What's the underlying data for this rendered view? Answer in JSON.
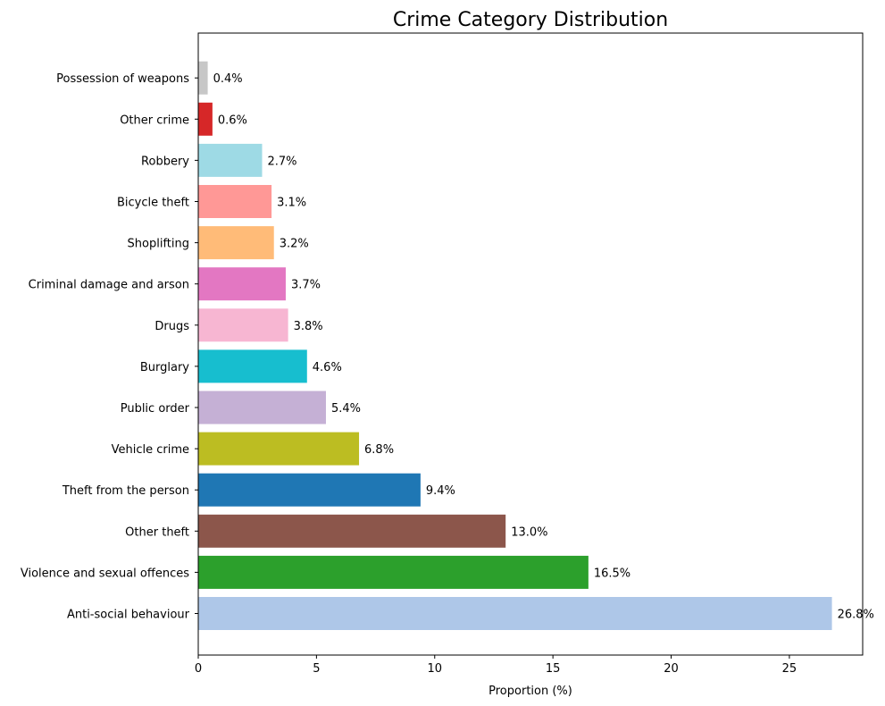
{
  "chart_data": {
    "type": "bar",
    "orientation": "horizontal",
    "title": "Crime Category Distribution",
    "xlabel": "Proportion (%)",
    "ylabel": "",
    "xlim": [
      0,
      28.1
    ],
    "xticks": [
      0,
      5,
      10,
      15,
      20,
      25
    ],
    "grid": false,
    "legend": "none",
    "categories": [
      "Anti-social behaviour",
      "Violence and sexual offences",
      "Other theft",
      "Theft from the person",
      "Vehicle crime",
      "Public order",
      "Burglary",
      "Drugs",
      "Criminal damage and arson",
      "Shoplifting",
      "Bicycle theft",
      "Robbery",
      "Other crime",
      "Possession of weapons"
    ],
    "values": [
      26.8,
      16.5,
      13.0,
      9.4,
      6.8,
      5.4,
      4.6,
      3.8,
      3.7,
      3.2,
      3.1,
      2.7,
      0.6,
      0.4
    ],
    "value_labels": [
      "26.8%",
      "16.5%",
      "13.0%",
      "9.4%",
      "6.8%",
      "5.4%",
      "4.6%",
      "3.8%",
      "3.7%",
      "3.2%",
      "3.1%",
      "2.7%",
      "0.6%",
      "0.4%"
    ],
    "colors": [
      "#aec7e8",
      "#2ca02c",
      "#8c564b",
      "#1f77b4",
      "#bcbd22",
      "#c5b0d5",
      "#17becf",
      "#f7b6d2",
      "#e377c2",
      "#ffbb78",
      "#ff9896",
      "#9edae5",
      "#d62728",
      "#c7c7c7"
    ]
  }
}
